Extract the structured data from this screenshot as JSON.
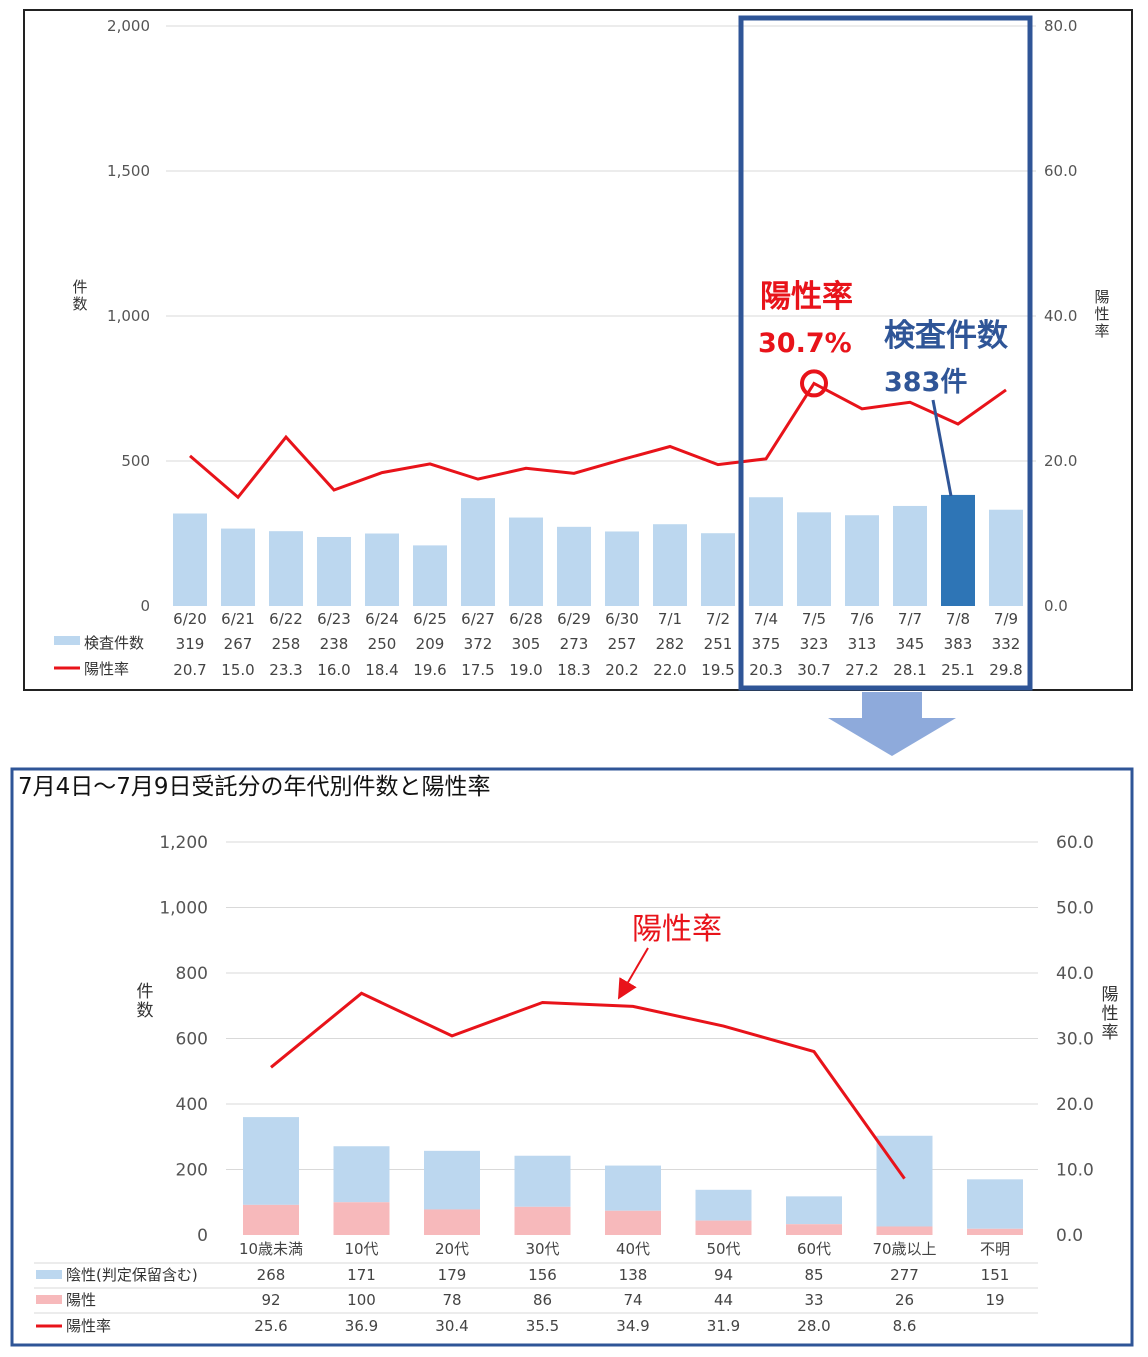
{
  "chart_data": [
    {
      "type": "bar+line",
      "categories": [
        "6/20",
        "6/21",
        "6/22",
        "6/23",
        "6/24",
        "6/25",
        "6/27",
        "6/28",
        "6/29",
        "6/30",
        "7/1",
        "7/2",
        "7/4",
        "7/5",
        "7/6",
        "7/7",
        "7/8",
        "7/9"
      ],
      "series": [
        {
          "name": "検査件数",
          "kind": "bar",
          "axis": "left",
          "values": [
            319,
            267,
            258,
            238,
            250,
            209,
            372,
            305,
            273,
            257,
            282,
            251,
            375,
            323,
            313,
            345,
            383,
            332
          ]
        },
        {
          "name": "陽性率",
          "kind": "line",
          "axis": "right",
          "values": [
            20.7,
            15.0,
            23.3,
            16.0,
            18.4,
            19.6,
            17.5,
            19.0,
            18.3,
            20.2,
            22.0,
            19.5,
            20.3,
            30.7,
            27.2,
            28.1,
            25.1,
            29.8
          ]
        }
      ],
      "ylabel": "件数",
      "y2label": "陽性率",
      "yticks": [
        "0",
        "500",
        "1,000",
        "1,500",
        "2,000"
      ],
      "y2ticks": [
        "0.0",
        "20.0",
        "40.0",
        "60.0",
        "80.0"
      ],
      "ylim": [
        0,
        2000
      ],
      "y2lim": [
        0,
        80
      ],
      "highlight_index": 16,
      "highlight_range": [
        12,
        17
      ],
      "annotations": {
        "rate_label": "陽性率",
        "rate_value": "30.7%",
        "count_label": "検査件数",
        "count_value": "383件"
      },
      "grid": true,
      "colors": {
        "bar": "#bcd7ef",
        "bar_highlight": "#2e75b6",
        "line": "#e8131a",
        "frame": "#2f5597",
        "annotation_rate": "#e8131a",
        "annotation_count": "#2f5597"
      }
    },
    {
      "type": "stacked-bar+line",
      "title": "7月4日～7月9日受託分の年代別件数と陽性率",
      "categories": [
        "10歳未満",
        "10代",
        "20代",
        "30代",
        "40代",
        "50代",
        "60代",
        "70歳以上",
        "不明"
      ],
      "series": [
        {
          "name": "陰性(判定保留含む)",
          "kind": "bar",
          "axis": "left",
          "values": [
            268,
            171,
            179,
            156,
            138,
            94,
            85,
            277,
            151
          ]
        },
        {
          "name": "陽性",
          "kind": "bar",
          "axis": "left",
          "values": [
            92,
            100,
            78,
            86,
            74,
            44,
            33,
            26,
            19
          ]
        },
        {
          "name": "陽性率",
          "kind": "line",
          "axis": "right",
          "values": [
            25.6,
            36.9,
            30.4,
            35.5,
            34.9,
            31.9,
            28.0,
            8.6,
            null
          ]
        }
      ],
      "ylabel": "件数",
      "y2label": "陽性率",
      "yticks": [
        "0",
        "200",
        "400",
        "600",
        "800",
        "1,000",
        "1,200"
      ],
      "y2ticks": [
        "0.0",
        "10.0",
        "20.0",
        "30.0",
        "40.0",
        "50.0",
        "60.0"
      ],
      "ylim": [
        0,
        1200
      ],
      "y2lim": [
        0,
        60
      ],
      "annotation": "陽性率",
      "grid": true,
      "colors": {
        "negative": "#bcd7ef",
        "positive": "#f7b9bb",
        "line": "#e8131a",
        "frame": "#2f5597",
        "annotation": "#e8131a"
      }
    }
  ]
}
